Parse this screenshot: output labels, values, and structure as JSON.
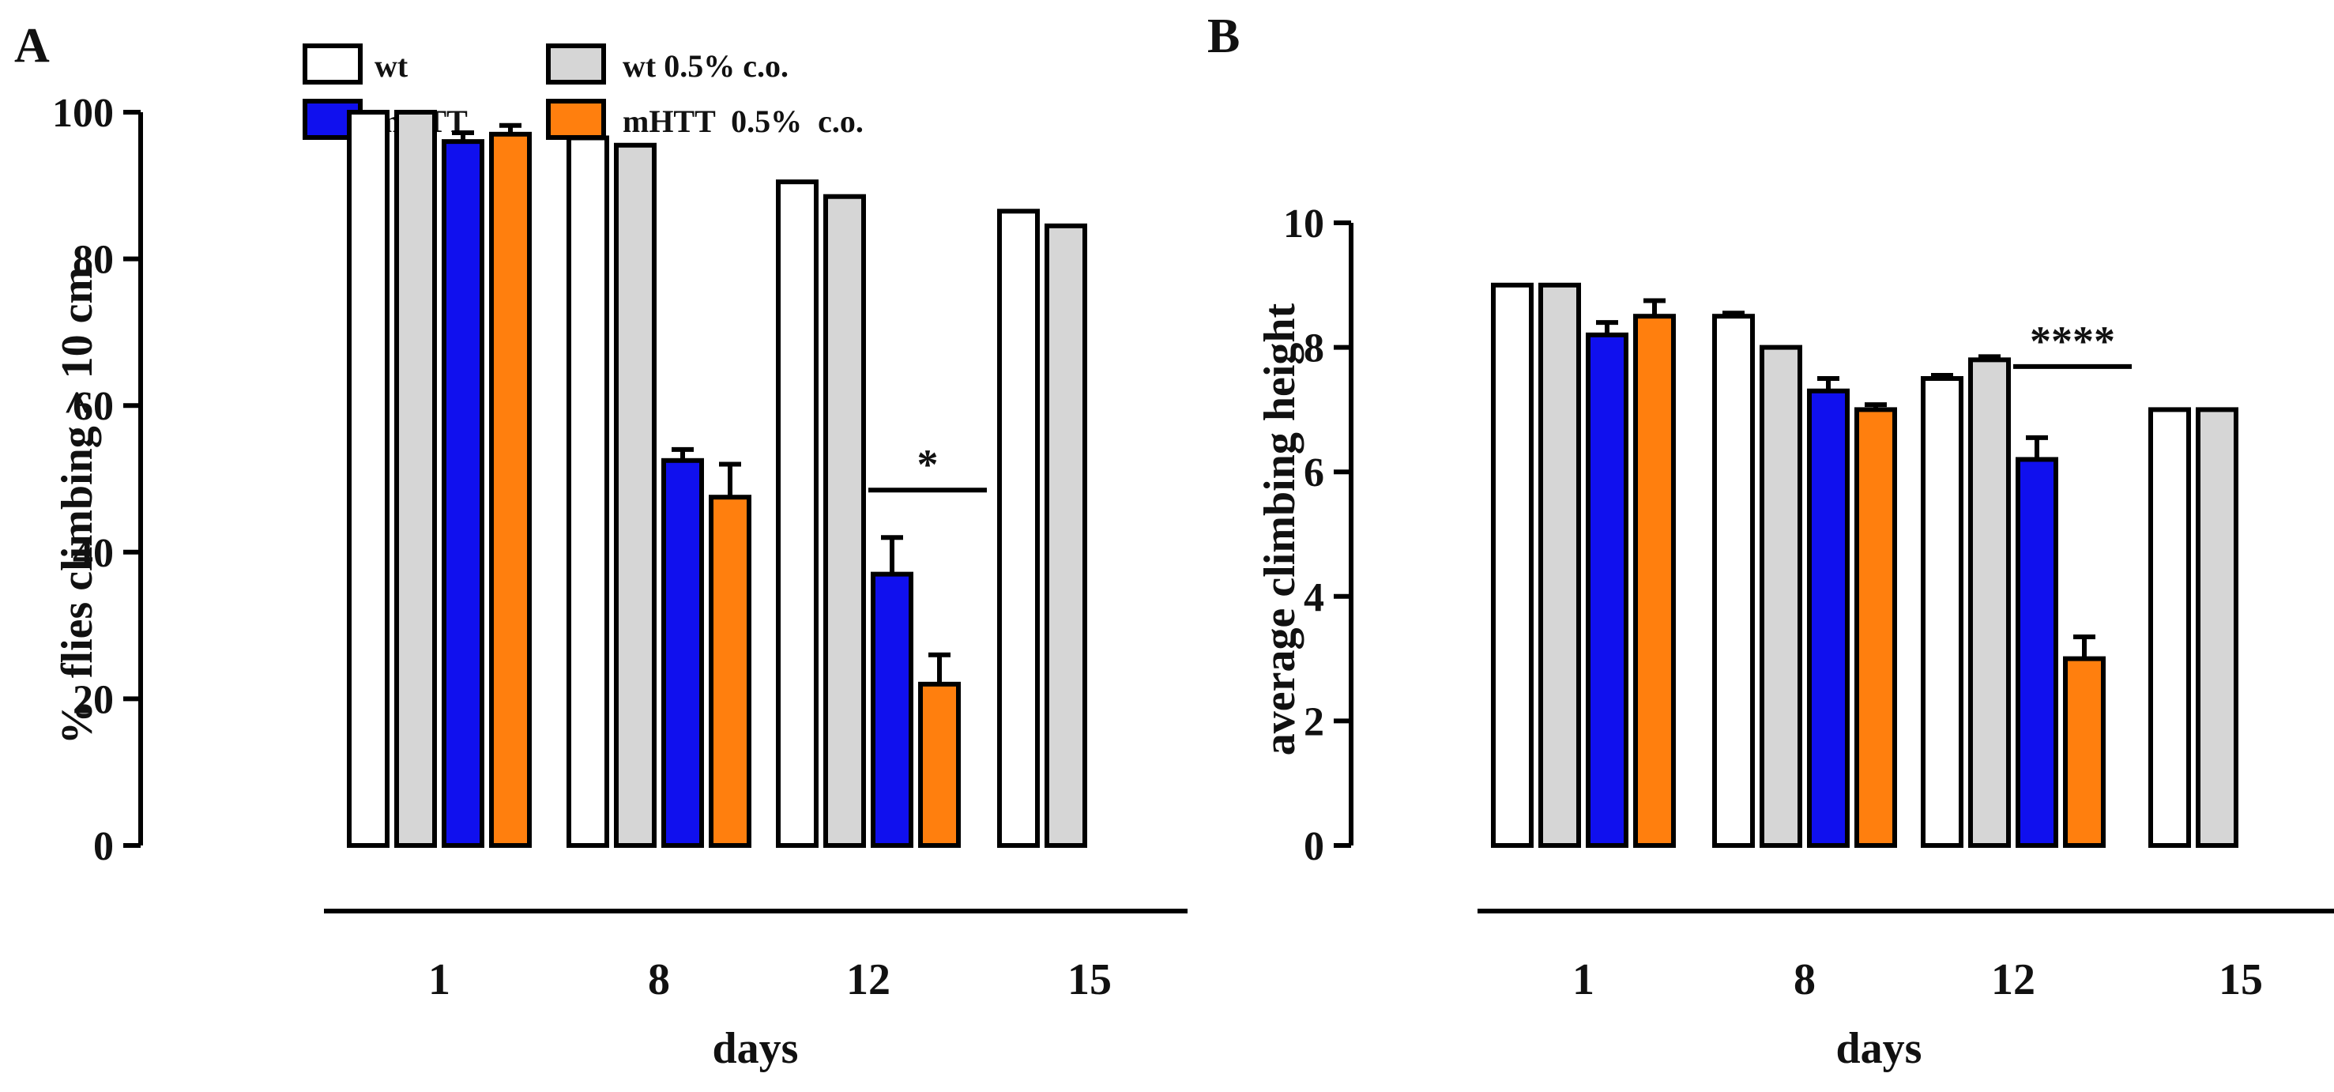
{
  "legend": [
    {
      "label": "wt",
      "color": "#ffffff"
    },
    {
      "label": "mHTT",
      "color": "#1010ee"
    },
    {
      "label": "wt 0.5% c.o.",
      "color": "#d6d6d6"
    },
    {
      "label": "mHTT  0.5%  c.o.",
      "color": "#ff7f0e"
    }
  ],
  "chart_data": [
    {
      "type": "bar",
      "panel": "A",
      "ylabel": "%  flies climbing > 10 cm",
      "xlabel": "days",
      "categories": [
        "1",
        "8",
        "12",
        "15"
      ],
      "ylim": [
        0,
        100
      ],
      "yticks": [
        0,
        20,
        40,
        60,
        80,
        100
      ],
      "series": [
        {
          "name": "wt",
          "values": [
            100,
            96.5,
            90.5,
            86.5
          ],
          "errors": [
            0,
            0,
            0,
            0
          ]
        },
        {
          "name": "wt 0.5% c.o.",
          "values": [
            100,
            95.5,
            88.5,
            84.5
          ],
          "errors": [
            0,
            0,
            0,
            0
          ]
        },
        {
          "name": "mHTT",
          "values": [
            96,
            52.5,
            37,
            null
          ],
          "errors": [
            1.2,
            1.5,
            5,
            null
          ]
        },
        {
          "name": "mHTT  0.5%  c.o.",
          "values": [
            97,
            47.5,
            22,
            null
          ],
          "errors": [
            1.2,
            4.5,
            4,
            null
          ]
        }
      ],
      "significance": {
        "category": "12",
        "label": "*"
      }
    },
    {
      "type": "bar",
      "panel": "B",
      "ylabel": "average climbing height",
      "xlabel": "days",
      "categories": [
        "1",
        "8",
        "12",
        "15"
      ],
      "ylim": [
        0,
        10
      ],
      "yticks": [
        0,
        2,
        4,
        6,
        8,
        10
      ],
      "series": [
        {
          "name": "wt",
          "values": [
            9,
            8.5,
            7.5,
            7
          ],
          "errors": [
            0,
            0.05,
            0.05,
            0
          ]
        },
        {
          "name": "wt 0.5% c.o.",
          "values": [
            9,
            8,
            7.8,
            7
          ],
          "errors": [
            0,
            0,
            0.05,
            0
          ]
        },
        {
          "name": "mHTT",
          "values": [
            8.2,
            7.3,
            6.2,
            null
          ],
          "errors": [
            0.2,
            0.2,
            0.35,
            null
          ]
        },
        {
          "name": "mHTT  0.5%  c.o.",
          "values": [
            8.5,
            7,
            3,
            null
          ],
          "errors": [
            0.25,
            0.08,
            0.35,
            null
          ]
        }
      ],
      "significance": {
        "category": "12",
        "label": "****"
      }
    }
  ]
}
